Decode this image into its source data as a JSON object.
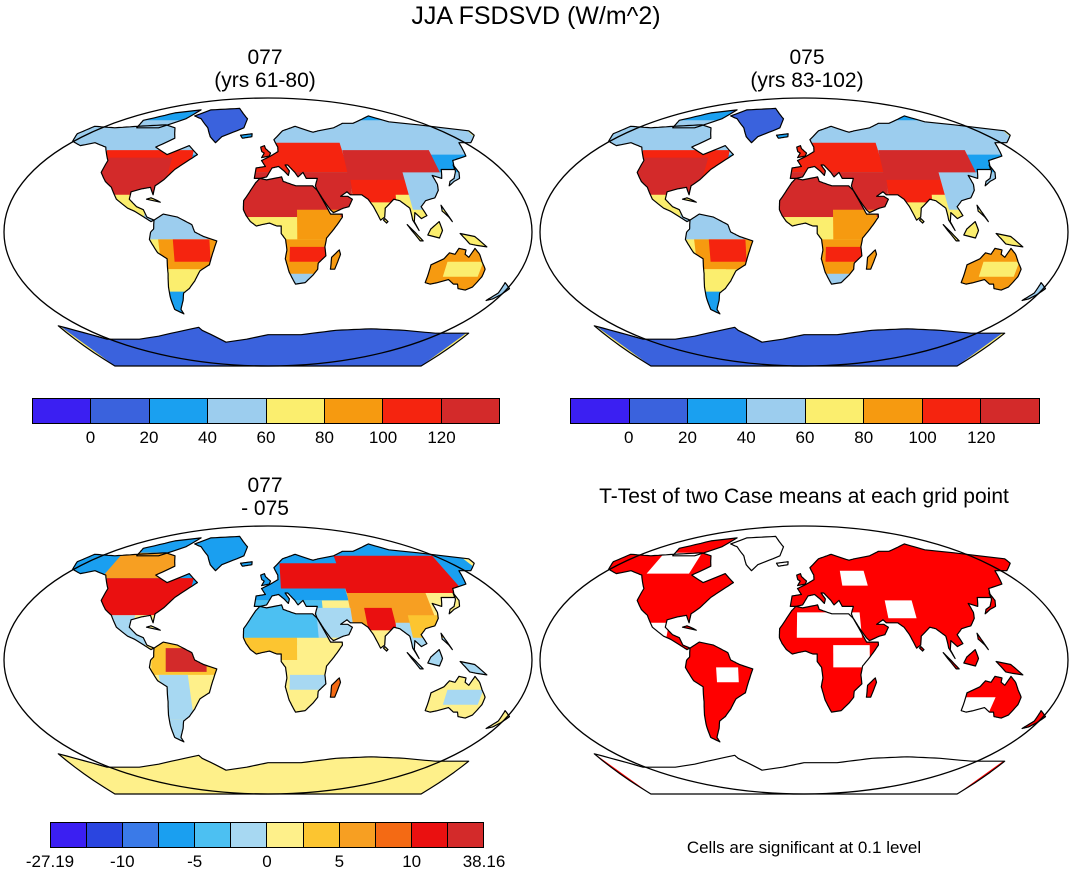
{
  "figure": {
    "title": "JJA FSDSVD (W/m^2)"
  },
  "panels": [
    {
      "title_line1": "077",
      "title_line2": "(yrs 61-80)",
      "colorbar": {
        "colors": [
          "#3b1ff2",
          "#3a62dd",
          "#1aa0f0",
          "#9ccdee",
          "#fbee6e",
          "#f69a10",
          "#f5240f",
          "#d32a2a"
        ],
        "labels": [
          "0",
          "20",
          "40",
          "60",
          "80",
          "100",
          "120"
        ]
      }
    },
    {
      "title_line1": "075",
      "title_line2": "(yrs 83-102)",
      "colorbar": {
        "colors": [
          "#3b1ff2",
          "#3a62dd",
          "#1aa0f0",
          "#9ccdee",
          "#fbee6e",
          "#f69a10",
          "#f5240f",
          "#d32a2a"
        ],
        "labels": [
          "0",
          "20",
          "40",
          "60",
          "80",
          "100",
          "120"
        ]
      }
    },
    {
      "title_line1": "077",
      "title_line2": "- 075",
      "colorbar": {
        "colors": [
          "#3b1ff2",
          "#2a45e0",
          "#3a7ae8",
          "#1a9ff0",
          "#4cc0f2",
          "#a7d8f2",
          "#fef08a",
          "#fcc530",
          "#f79f22",
          "#f46a14",
          "#ea1010",
          "#d32a2a"
        ],
        "labels": [
          "-27.19",
          "-10",
          "-5",
          "0",
          "5",
          "10",
          "38.16"
        ]
      }
    },
    {
      "title_line1": "T-Test of two Case means at each grid point",
      "note": "Cells are significant at 0.1 level",
      "significance_color": "#ff0000"
    }
  ]
}
